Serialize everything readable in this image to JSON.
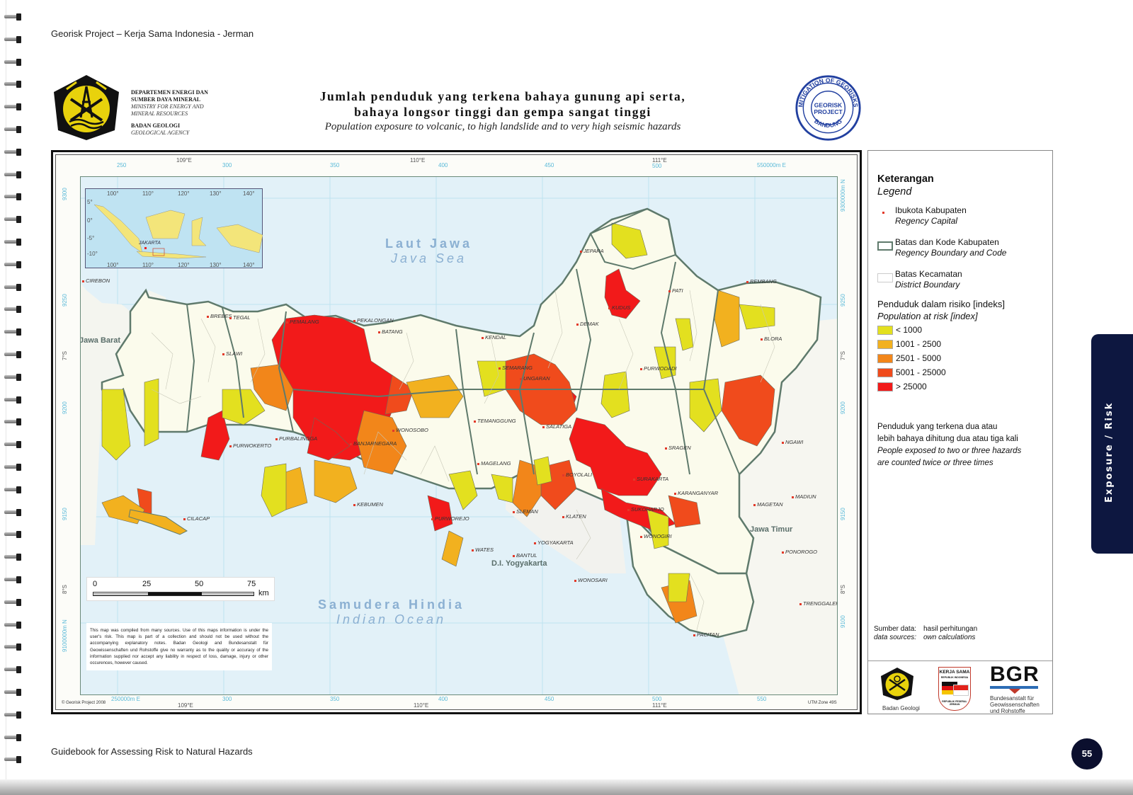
{
  "running_head": "Georisk Project – Kerja Sama Indonesia - Jerman",
  "running_foot": "Guidebook for Assessing Risk to Natural Hazards",
  "page_number": "55",
  "side_tab": "Exposure / Risk",
  "ministry": {
    "line1": "DEPARTEMEN ENERGI DAN",
    "line2": "SUMBER DAYA MINERAL",
    "line3": "MINISTRY FOR ENERGY AND",
    "line4": "MINERAL RESOURCES",
    "line5": "BADAN GEOLOGI",
    "line6": "GEOLOGICAL AGENCY"
  },
  "title": {
    "id_line1": "Jumlah penduduk yang terkena bahaya gunung api serta,",
    "id_line2": "bahaya longsor tinggi dan gempa sangat tinggi",
    "en": "Population exposure to volcanic, to high landslide and to very high seismic hazards"
  },
  "seal": {
    "outer_top": "MITIGATION OF GEORISKS",
    "outer_bottom": "BANDUNG",
    "center1": "GEORISK",
    "center2": "PROJECT"
  },
  "map": {
    "top_ticks": [
      "250",
      "109°E",
      "300",
      "350",
      "110°E",
      "400",
      "450",
      "111°E",
      "500",
      "550000m E"
    ],
    "bottom_ticks": [
      "250000m E",
      "109°E",
      "300",
      "350",
      "110°E",
      "400",
      "450",
      "111°E",
      "500",
      "550"
    ],
    "left_ticks": [
      "9300",
      "9250",
      "7°S",
      "9200",
      "9150",
      "8°S",
      "9100000m N"
    ],
    "right_ticks": [
      "9300000m N",
      "9250",
      "7°S",
      "9200",
      "9150",
      "8°S",
      "9100"
    ],
    "inset": {
      "lon_ticks": [
        "100°",
        "110°",
        "120°",
        "130°",
        "140°"
      ],
      "lat_ticks": [
        "5°",
        "0°",
        "-5°",
        "-10°"
      ],
      "capital": "JAKARTA"
    },
    "seas": {
      "java_sea_id": "Laut Jawa",
      "java_sea_en": "Java Sea",
      "indian_ocean_id": "Samudera Hindia",
      "indian_ocean_en": "Indian Ocean"
    },
    "provinces": [
      "Jawa Barat",
      "Jawa Timur",
      "D.I. Yogyakarta"
    ],
    "cities": [
      "CIREBON",
      "BREBES",
      "TEGAL",
      "SLAWI",
      "PEMALANG",
      "PEKALONGAN",
      "BATANG",
      "KENDAL",
      "SEMARANG",
      "UNGARAN",
      "DEMAK",
      "JEPARA",
      "KUDUS",
      "PATI",
      "REMBANG",
      "BLORA",
      "PURWODADI",
      "PURBALINGGA",
      "PURWOKERTO",
      "BANJARNEGARA",
      "WONOSOBO",
      "TEMANGGUNG",
      "SALATIGA",
      "MAGELANG",
      "BOYOLALI",
      "KLATEN",
      "SRAGEN",
      "KARANGANYAR",
      "SUKOHARJO",
      "SURAKARTA",
      "WONOGIRI",
      "NGAWI",
      "MAGETAN",
      "MADIUN",
      "PONOROGO",
      "TRENGGALEK",
      "PACITAN",
      "WONOSARI",
      "BANTUL",
      "YOGYAKARTA",
      "SLEMAN",
      "WATES",
      "PURWOREJO",
      "KEBUMEN",
      "CILACAP"
    ],
    "scale": {
      "ticks": [
        "0",
        "25",
        "50",
        "75"
      ],
      "unit": "km"
    },
    "disclaimer": "This map was compiled from many sources. Use of this maps information is under the user's risk. This map is part of a collection and should not be used without the accompanying explanatory notes. Badan Geologi and Bundesanstalt für Geowissenschaften und Rohstoffe give no warranty as to the quality or accuracy of the information supplied nor accept any liability in respect of loss, damage, injury or other occurences, however caused.",
    "copyright": "© Georisk Project 2008",
    "utm": "UTM Zone 49S"
  },
  "legend": {
    "title_id": "Keterangan",
    "title_en": "Legend",
    "items": [
      {
        "id": "Ibukota Kabupaten",
        "en": "Regency Capital"
      },
      {
        "id": "Batas dan Kode Kabupaten",
        "en": "Regency Boundary and Code"
      },
      {
        "id": "Batas Kecamatan",
        "en": "District Boundary"
      }
    ],
    "classes_title_id": "Penduduk dalam risiko [indeks]",
    "classes_title_en": "Population at risk [index]",
    "classes": [
      {
        "label": "< 1000",
        "color": "#e3e01f"
      },
      {
        "label": "1001 - 2500",
        "color": "#f2b11f"
      },
      {
        "label": "2501 - 5000",
        "color": "#f2861a"
      },
      {
        "label": "5001 - 25000",
        "color": "#f04b1c"
      },
      {
        "label": "> 25000",
        "color": "#f21a1a"
      }
    ],
    "note": {
      "id1": "Penduduk yang terkena dua atau",
      "id2": "lebih bahaya dihitung dua atau tiga kali",
      "en1": "People exposed to two or three hazards",
      "en2": "are counted twice or three times"
    },
    "sources": {
      "k_id": "Sumber data:",
      "v_id": "hasil perhitungan",
      "k_en": "data sources:",
      "v_en": "own calculations"
    },
    "logos": {
      "badan": "Badan Geologi",
      "ks_top": "KERJA SAMA",
      "ks_sub1": "REPUBLIK INDONESIA",
      "ks_sub2": "REPUBLIK FEDERAL JERMAN",
      "bgr": "BGR",
      "bgr_name1": "Bundesanstalt für",
      "bgr_name2": "Geowissenschaften",
      "bgr_name3": "und Rohstoffe"
    }
  },
  "colors": {
    "sea": "#e2f1f8",
    "land_neutral": "#fbfbec",
    "boundary": "#5f7a6c",
    "tab_navy": "#0d1740"
  }
}
